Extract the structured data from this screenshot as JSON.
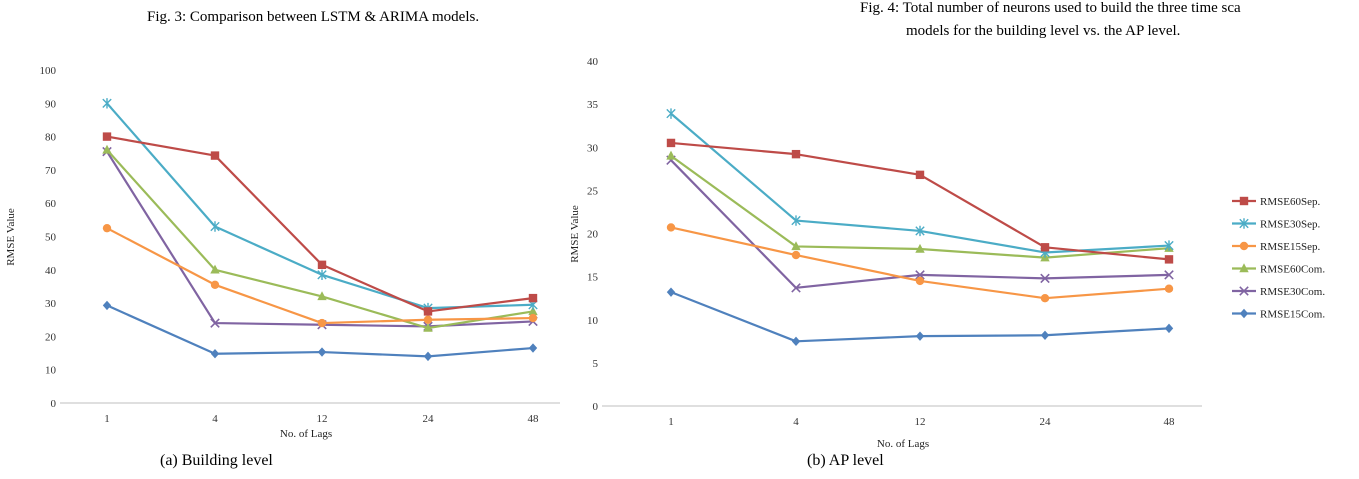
{
  "captions": {
    "fig3": "Fig. 3: Comparison between LSTM & ARIMA models.",
    "fig4_line1": "Fig. 4: Total number of neurons used to build the three time sca",
    "fig4_line2": "models for the building level vs. the AP level.",
    "sub_a": "(a) Building level",
    "sub_b": "(b) AP level"
  },
  "chart_data": [
    {
      "type": "line",
      "subtitle": "(a) Building level",
      "xlabel": "No. of Lags",
      "ylabel": "RMSE Value",
      "categories": [
        "1",
        "4",
        "12",
        "24",
        "48"
      ],
      "ylim": [
        0,
        100
      ],
      "yticks": [
        0,
        10,
        20,
        30,
        40,
        50,
        60,
        70,
        80,
        90,
        100
      ],
      "series": [
        {
          "name": "RMSE60Sep.",
          "color": "#be4b48",
          "marker": "square",
          "values": [
            80,
            74.3,
            41.5,
            27.5,
            31.5
          ]
        },
        {
          "name": "RMSE30Sep.",
          "color": "#4bacc6",
          "marker": "asterisk",
          "values": [
            90,
            53,
            38.5,
            28.5,
            29.5
          ]
        },
        {
          "name": "RMSE15Sep.",
          "color": "#f79646",
          "marker": "circle",
          "values": [
            52.5,
            35.5,
            24,
            25,
            25.5
          ]
        },
        {
          "name": "RMSE60Com.",
          "color": "#9bbb59",
          "marker": "triangle",
          "values": [
            76,
            40,
            32,
            22.5,
            27.5
          ]
        },
        {
          "name": "RMSE30Com.",
          "color": "#8064a2",
          "marker": "x",
          "values": [
            75.5,
            24,
            23.5,
            23,
            24.5
          ]
        },
        {
          "name": "RMSE15Com.",
          "color": "#4f81bd",
          "marker": "diamond",
          "values": [
            29.3,
            14.8,
            15.3,
            14,
            16.5
          ]
        }
      ]
    },
    {
      "type": "line",
      "subtitle": "(b) AP level",
      "xlabel": "No. of Lags",
      "ylabel": "RMSE Value",
      "categories": [
        "1",
        "4",
        "12",
        "24",
        "48"
      ],
      "ylim": [
        0,
        40
      ],
      "yticks": [
        0,
        5,
        10,
        15,
        20,
        25,
        30,
        35,
        40
      ],
      "legend_position": "right",
      "series": [
        {
          "name": "RMSE60Sep.",
          "color": "#be4b48",
          "marker": "square",
          "values": [
            30.5,
            29.2,
            26.8,
            18.4,
            17
          ]
        },
        {
          "name": "RMSE30Sep.",
          "color": "#4bacc6",
          "marker": "asterisk",
          "values": [
            33.9,
            21.5,
            20.3,
            17.8,
            18.6
          ]
        },
        {
          "name": "RMSE15Sep.",
          "color": "#f79646",
          "marker": "circle",
          "values": [
            20.7,
            17.5,
            14.5,
            12.5,
            13.6
          ]
        },
        {
          "name": "RMSE60Com.",
          "color": "#9bbb59",
          "marker": "triangle",
          "values": [
            29,
            18.5,
            18.2,
            17.2,
            18.3
          ]
        },
        {
          "name": "RMSE30Com.",
          "color": "#8064a2",
          "marker": "x",
          "values": [
            28.5,
            13.7,
            15.2,
            14.8,
            15.2
          ]
        },
        {
          "name": "RMSE15Com.",
          "color": "#4f81bd",
          "marker": "diamond",
          "values": [
            13.2,
            7.5,
            8.1,
            8.2,
            9
          ]
        }
      ]
    }
  ]
}
